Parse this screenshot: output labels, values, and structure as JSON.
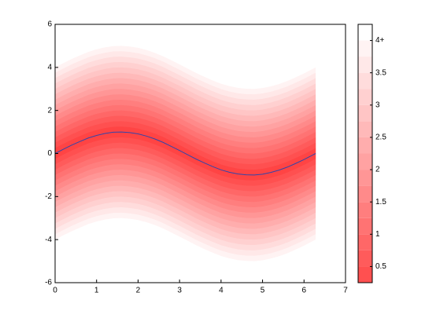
{
  "chart_data": {
    "type": "fan",
    "x": [
      0,
      0.2,
      0.4,
      0.6,
      0.8,
      1.0,
      1.2,
      1.4,
      1.6,
      1.8,
      2.0,
      2.2,
      2.4,
      2.6,
      2.8,
      3.0,
      3.2,
      3.4,
      3.6,
      3.8,
      4.0,
      4.2,
      4.4,
      4.6,
      4.8,
      5.0,
      5.2,
      5.4,
      5.6,
      5.8,
      6.0,
      6.2,
      6.28
    ],
    "series": [
      {
        "color": "#3344aa",
        "values": [
          0,
          0.2,
          0.39,
          0.56,
          0.72,
          0.84,
          0.93,
          0.99,
          1.0,
          0.97,
          0.91,
          0.81,
          0.68,
          0.52,
          0.33,
          0.14,
          -0.06,
          -0.26,
          -0.44,
          -0.61,
          -0.76,
          -0.87,
          -0.95,
          -0.99,
          -1.0,
          -0.96,
          -0.88,
          -0.77,
          -0.63,
          -0.46,
          -0.28,
          -0.08,
          0
        ]
      }
    ],
    "levels": [
      0.25,
      0.5,
      0.75,
      1,
      1.25,
      1.5,
      1.75,
      2,
      2.25,
      2.5,
      2.75,
      3,
      3.25,
      3.5,
      3.75,
      4,
      4.25
    ],
    "colormap": [
      "#ff4444",
      "#ffffff"
    ],
    "xlim": [
      0,
      7
    ],
    "xticks": [
      0,
      1,
      2,
      3,
      4,
      5,
      6,
      7
    ],
    "ylim": [
      -6,
      6
    ],
    "yticks": [
      -6,
      -4,
      -2,
      0,
      2,
      4,
      6
    ],
    "clim": [
      0.25,
      4.25
    ],
    "cticks": [
      0.5,
      1,
      1.5,
      2,
      2.5,
      3,
      3.5,
      {
        "value": 4,
        "label": "4+"
      }
    ]
  }
}
